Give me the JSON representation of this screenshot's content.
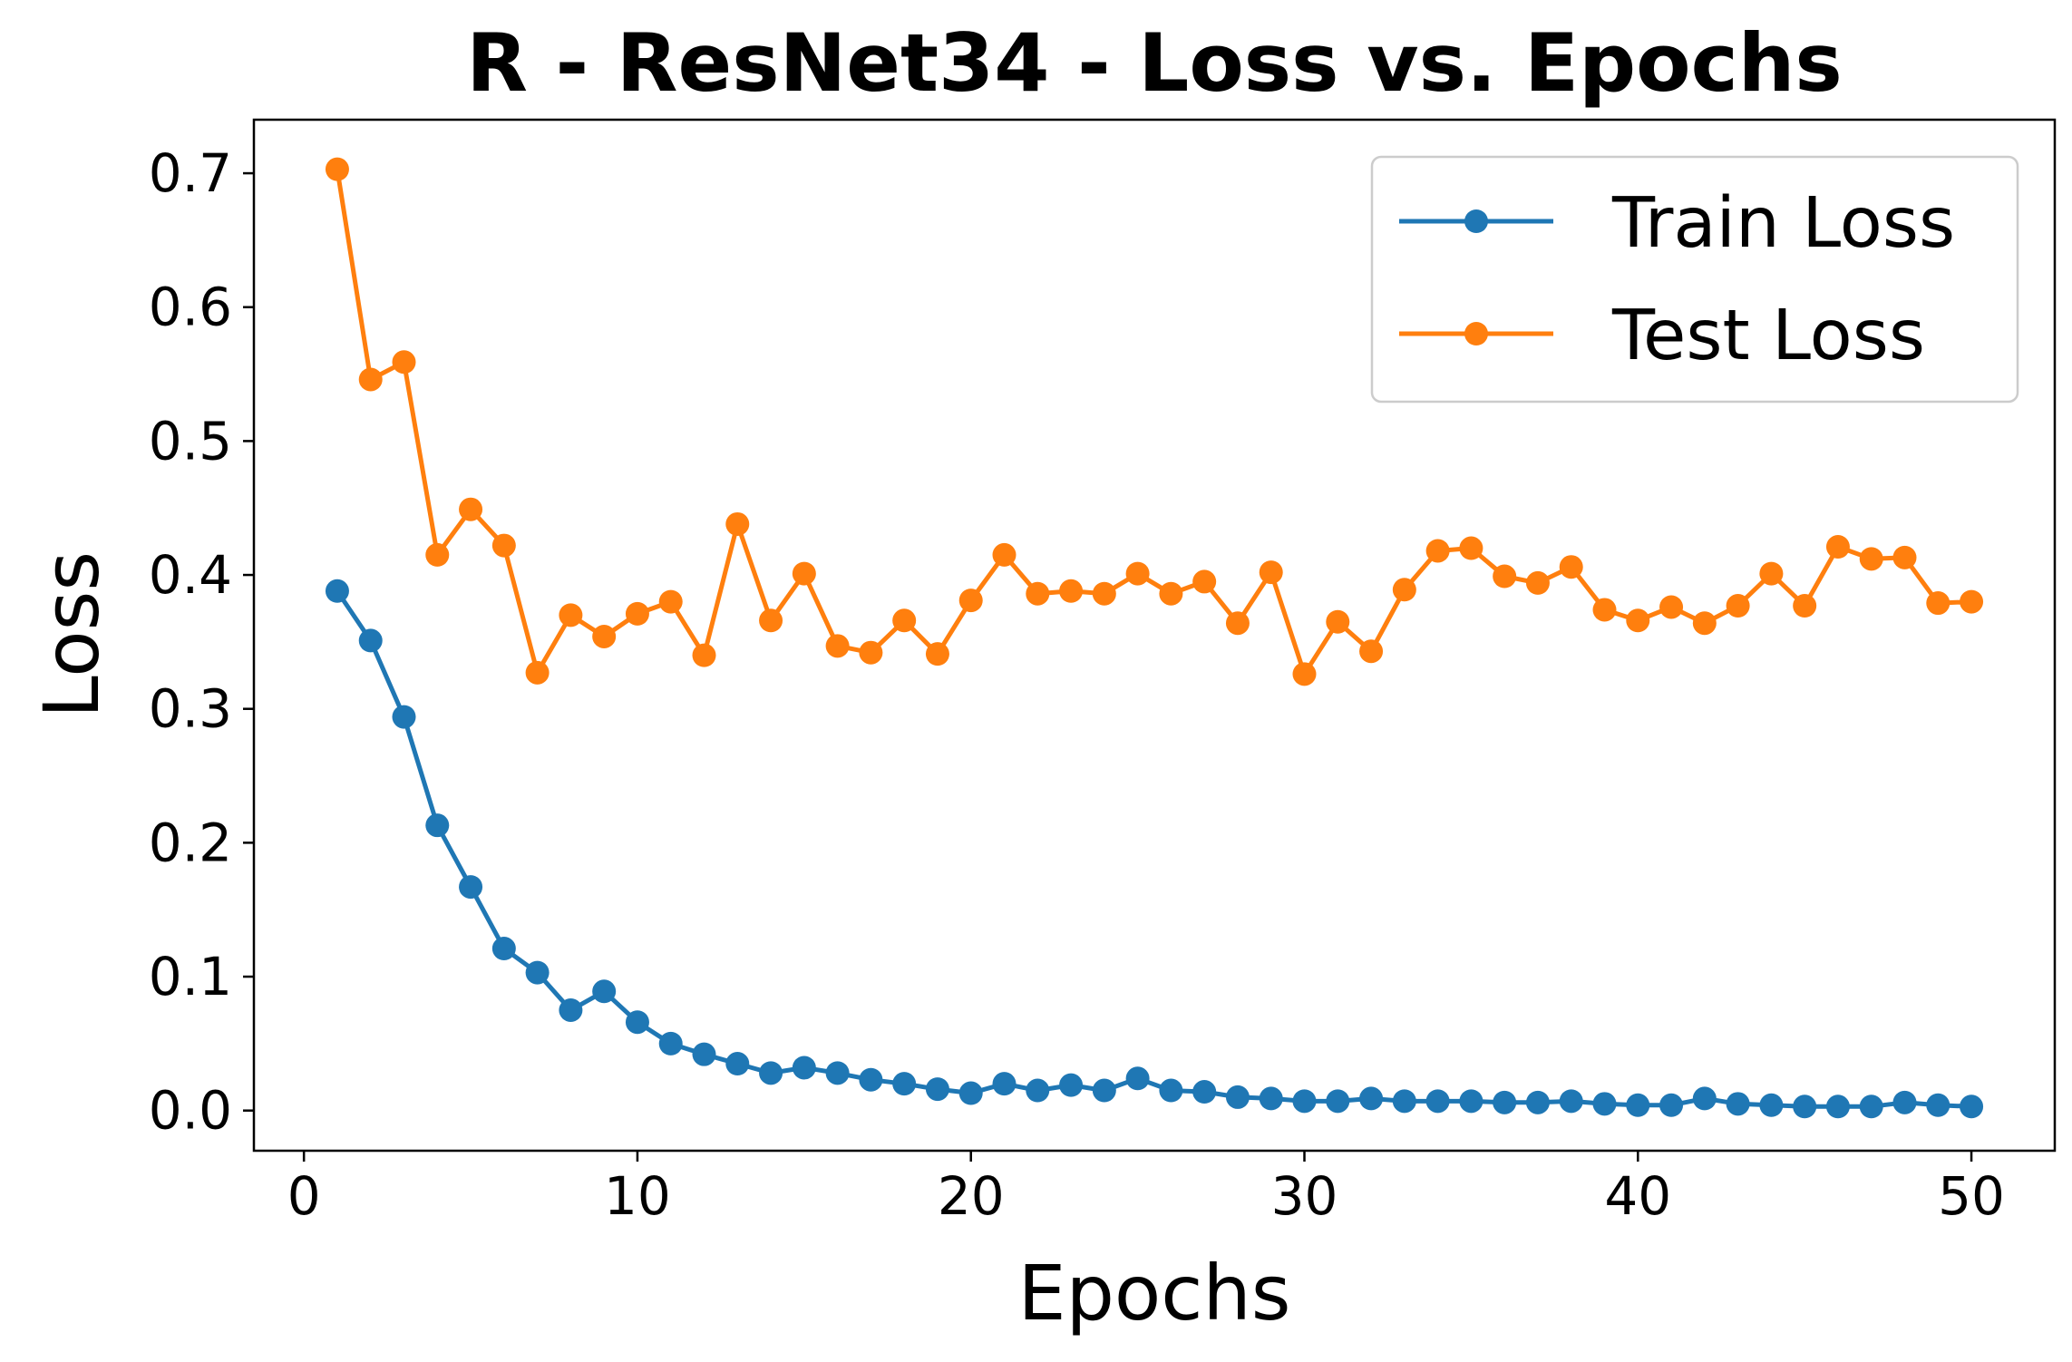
{
  "chart_data": {
    "type": "line",
    "title": "R - ResNet34 - Loss vs. Epochs",
    "xlabel": "Epochs",
    "ylabel": "Loss",
    "xlim": [
      -1.5,
      52.5
    ],
    "ylim": [
      -0.03,
      0.74
    ],
    "xticks": [
      0,
      10,
      20,
      30,
      40,
      50
    ],
    "yticks": [
      0.0,
      0.1,
      0.2,
      0.3,
      0.4,
      0.5,
      0.6,
      0.7
    ],
    "xtick_labels": [
      "0",
      "10",
      "20",
      "30",
      "40",
      "50"
    ],
    "ytick_labels": [
      "0.0",
      "0.1",
      "0.2",
      "0.3",
      "0.4",
      "0.5",
      "0.6",
      "0.7"
    ],
    "grid": false,
    "legend_position": "top-right",
    "x": [
      1,
      2,
      3,
      4,
      5,
      6,
      7,
      8,
      9,
      10,
      11,
      12,
      13,
      14,
      15,
      16,
      17,
      18,
      19,
      20,
      21,
      22,
      23,
      24,
      25,
      26,
      27,
      28,
      29,
      30,
      31,
      32,
      33,
      34,
      35,
      36,
      37,
      38,
      39,
      40,
      41,
      42,
      43,
      44,
      45,
      46,
      47,
      48,
      49,
      50
    ],
    "series": [
      {
        "name": "Train Loss",
        "color": "#1f77b4",
        "values": [
          0.388,
          0.351,
          0.294,
          0.213,
          0.167,
          0.121,
          0.103,
          0.075,
          0.089,
          0.066,
          0.05,
          0.042,
          0.035,
          0.028,
          0.032,
          0.028,
          0.023,
          0.02,
          0.016,
          0.013,
          0.02,
          0.015,
          0.019,
          0.015,
          0.024,
          0.015,
          0.014,
          0.01,
          0.009,
          0.007,
          0.007,
          0.009,
          0.007,
          0.007,
          0.007,
          0.006,
          0.006,
          0.007,
          0.005,
          0.004,
          0.004,
          0.009,
          0.005,
          0.004,
          0.003,
          0.003,
          0.003,
          0.006,
          0.004,
          0.003
        ]
      },
      {
        "name": "Test Loss",
        "color": "#ff7f0e",
        "values": [
          0.703,
          0.546,
          0.559,
          0.415,
          0.449,
          0.422,
          0.327,
          0.37,
          0.354,
          0.371,
          0.38,
          0.34,
          0.438,
          0.366,
          0.401,
          0.347,
          0.342,
          0.366,
          0.341,
          0.381,
          0.415,
          0.386,
          0.388,
          0.386,
          0.401,
          0.386,
          0.395,
          0.364,
          0.402,
          0.326,
          0.365,
          0.343,
          0.389,
          0.418,
          0.42,
          0.399,
          0.394,
          0.406,
          0.374,
          0.366,
          0.376,
          0.364,
          0.377,
          0.401,
          0.377,
          0.421,
          0.412,
          0.413,
          0.379,
          0.38
        ]
      }
    ]
  }
}
